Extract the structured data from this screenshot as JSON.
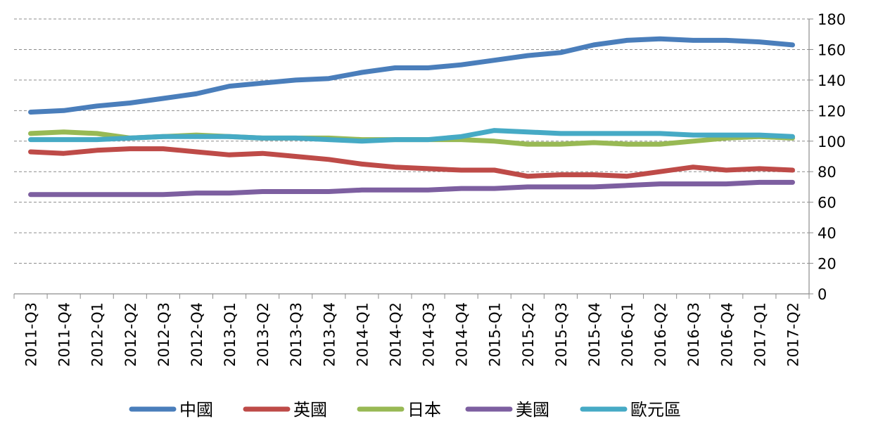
{
  "chart_data": {
    "type": "line",
    "title": "",
    "xlabel": "",
    "ylabel": "",
    "ylim": [
      0,
      180
    ],
    "yticks": [
      0,
      20,
      40,
      60,
      80,
      100,
      120,
      140,
      160,
      180
    ],
    "grid": "horizontal-dashed",
    "y_axis_side": "right",
    "legend_position": "bottom",
    "categories": [
      "2011-Q3",
      "2011-Q4",
      "2012-Q1",
      "2012-Q2",
      "2012-Q3",
      "2012-Q4",
      "2013-Q1",
      "2013-Q2",
      "2013-Q3",
      "2013-Q4",
      "2014-Q1",
      "2014-Q2",
      "2014-Q3",
      "2014-Q4",
      "2015-Q1",
      "2015-Q2",
      "2015-Q3",
      "2015-Q4",
      "2016-Q1",
      "2016-Q2",
      "2016-Q3",
      "2016-Q4",
      "2017-Q1",
      "2017-Q2"
    ],
    "series": [
      {
        "name": "中國",
        "color": "#4a7ebb",
        "values": [
          119,
          120,
          123,
          125,
          128,
          131,
          136,
          138,
          140,
          141,
          145,
          148,
          148,
          150,
          153,
          156,
          158,
          163,
          166,
          167,
          166,
          166,
          165,
          163
        ]
      },
      {
        "name": "英國",
        "color": "#be4b48",
        "values": [
          93,
          92,
          94,
          95,
          95,
          93,
          91,
          92,
          90,
          88,
          85,
          83,
          82,
          81,
          81,
          77,
          78,
          78,
          77,
          80,
          83,
          81,
          82,
          81
        ]
      },
      {
        "name": "日本",
        "color": "#98b954",
        "values": [
          105,
          106,
          105,
          102,
          103,
          104,
          103,
          102,
          102,
          102,
          101,
          101,
          101,
          101,
          100,
          98,
          98,
          99,
          98,
          98,
          100,
          102,
          103,
          102
        ]
      },
      {
        "name": "美國",
        "color": "#7d5fa0",
        "values": [
          65,
          65,
          65,
          65,
          65,
          66,
          66,
          67,
          67,
          67,
          68,
          68,
          68,
          69,
          69,
          70,
          70,
          70,
          71,
          72,
          72,
          72,
          73,
          73
        ]
      },
      {
        "name": "歐元區",
        "color": "#46aac5",
        "values": [
          101,
          101,
          101,
          102,
          103,
          103,
          103,
          102,
          102,
          101,
          100,
          101,
          101,
          103,
          107,
          106,
          105,
          105,
          105,
          105,
          104,
          104,
          104,
          103
        ]
      }
    ]
  }
}
